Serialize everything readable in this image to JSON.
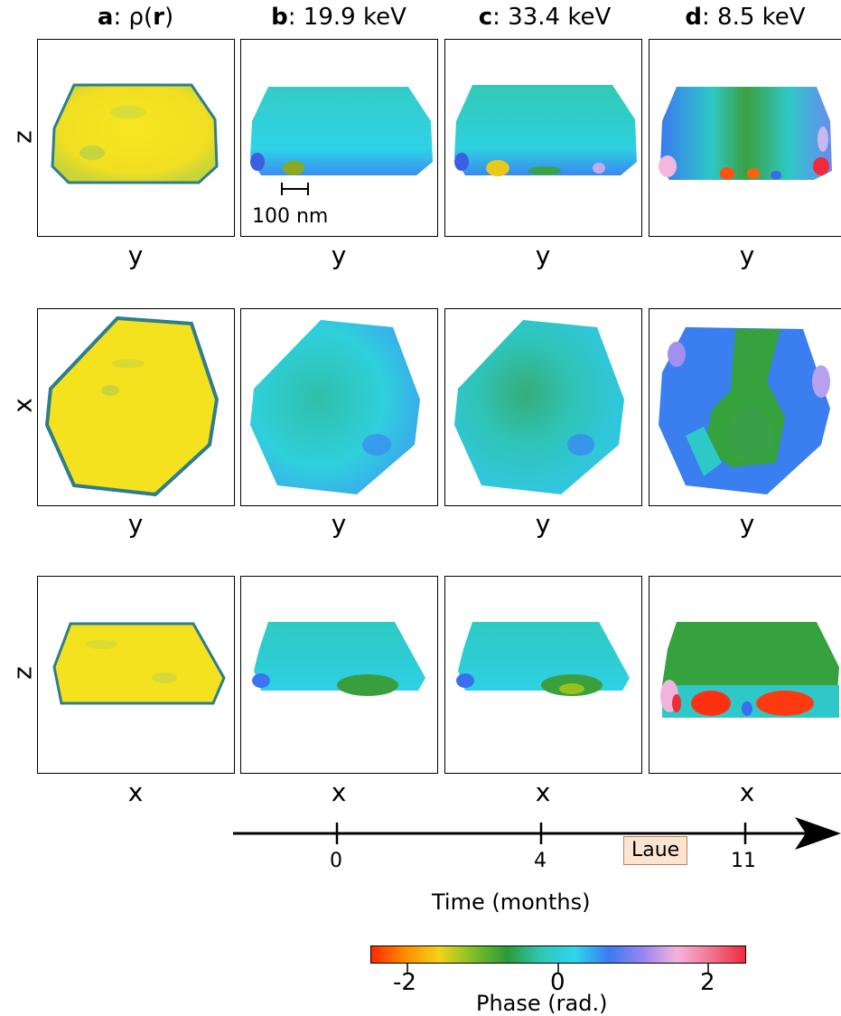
{
  "columns": [
    {
      "letter": "a",
      "label": ": ρ(",
      "bold": "r",
      "tail": ")"
    },
    {
      "letter": "b",
      "label": ": 19.9 keV"
    },
    {
      "letter": "c",
      "label": ": 33.4 keV"
    },
    {
      "letter": "d",
      "label": ": 8.5 keV"
    }
  ],
  "row_axes": [
    {
      "left": "z",
      "below": "y"
    },
    {
      "left": "x",
      "below": "y"
    },
    {
      "left": "z",
      "below": "x"
    }
  ],
  "scalebar": "100 nm",
  "timeline": {
    "ticks": [
      "0",
      "4",
      "11"
    ],
    "event": "Laue",
    "label": "Time (months)"
  },
  "colorbar": {
    "ticks": [
      "-2",
      "0",
      "2"
    ],
    "label": "Phase (rad.)",
    "colors": [
      "#ff2a00",
      "#ff8c00",
      "#f2d31a",
      "#7ec026",
      "#2a9a3a",
      "#2fc8b5",
      "#2ed5ef",
      "#3b7bf0",
      "#9a85f2",
      "#f5b2dc",
      "#f07590",
      "#ef2a3a"
    ]
  }
}
